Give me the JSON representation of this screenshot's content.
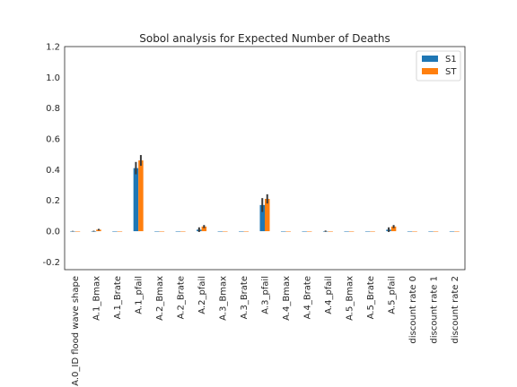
{
  "chart_data": {
    "type": "bar",
    "title": "Sobol analysis for Expected Number of Deaths",
    "xlabel": "",
    "ylabel": "",
    "ylim": [
      -0.25,
      1.2
    ],
    "yticks": [
      -0.2,
      0.0,
      0.2,
      0.4,
      0.6,
      0.8,
      1.0,
      1.2
    ],
    "ytick_labels": [
      "-0.2",
      "0.0",
      "0.2",
      "0.4",
      "0.6",
      "0.8",
      "1.0",
      "1.2"
    ],
    "grid": false,
    "legend_position": "top-right",
    "categories": [
      "A.0_ID flood wave shape",
      "A.1_Bmax",
      "A.1_Brate",
      "A.1_pfail",
      "A.2_Bmax",
      "A.2_Brate",
      "A.2_pfail",
      "A.3_Bmax",
      "A.3_Brate",
      "A.3_pfail",
      "A.4_Bmax",
      "A.4_Brate",
      "A.4_pfail",
      "A.5_Bmax",
      "A.5_Brate",
      "A.5_pfail",
      "discount rate 0",
      "discount rate 1",
      "discount rate 2"
    ],
    "series": [
      {
        "name": "S1",
        "color": "#1f77b4",
        "values": [
          0.0,
          0.0,
          0.0,
          0.41,
          0.0,
          0.0,
          0.01,
          0.0,
          0.0,
          0.17,
          0.0,
          0.0,
          0.0,
          0.0,
          0.0,
          0.01,
          0.0,
          0.0,
          0.0
        ],
        "errors": [
          0.002,
          0.003,
          0.0,
          0.04,
          0.0,
          0.0,
          0.015,
          0.0,
          0.0,
          0.045,
          0.0,
          0.0,
          0.004,
          0.0,
          0.0,
          0.015,
          0.0,
          0.0,
          0.0
        ]
      },
      {
        "name": "ST",
        "color": "#ff7f0e",
        "values": [
          0.0,
          0.01,
          0.0,
          0.46,
          0.0,
          0.0,
          0.03,
          0.0,
          0.0,
          0.21,
          0.0,
          0.0,
          0.0,
          0.0,
          0.0,
          0.03,
          0.0,
          0.0,
          0.0
        ],
        "errors": [
          0.0,
          0.005,
          0.0,
          0.035,
          0.0,
          0.0,
          0.01,
          0.0,
          0.0,
          0.03,
          0.0,
          0.0,
          0.0,
          0.0,
          0.0,
          0.01,
          0.0,
          0.0,
          0.0
        ]
      }
    ]
  }
}
